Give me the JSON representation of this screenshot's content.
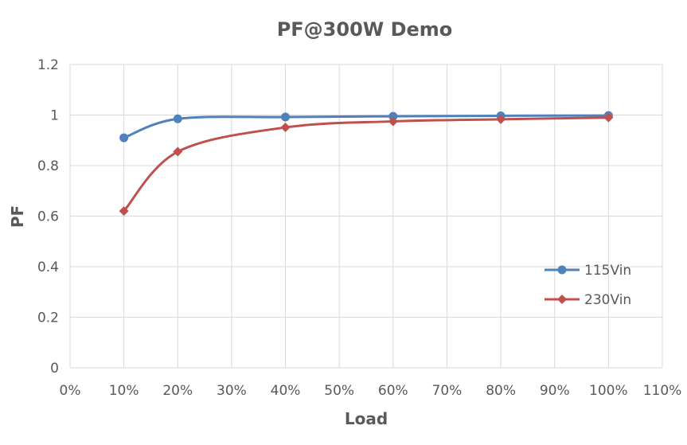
{
  "chart_data": {
    "type": "line",
    "title": "PF@300W Demo",
    "xlabel": "Load",
    "ylabel": "PF",
    "xlim": [
      0,
      110
    ],
    "ylim": [
      0,
      1.2
    ],
    "x_ticks": [
      0,
      10,
      20,
      30,
      40,
      50,
      60,
      70,
      80,
      90,
      100,
      110
    ],
    "x_tick_labels": [
      "0%",
      "10%",
      "20%",
      "30%",
      "40%",
      "50%",
      "60%",
      "70%",
      "80%",
      "90%",
      "100%",
      "110%"
    ],
    "y_ticks": [
      0,
      0.2,
      0.4,
      0.6,
      0.8,
      1,
      1.2
    ],
    "y_tick_labels": [
      "0",
      "0.2",
      "0.4",
      "0.6",
      "0.8",
      "1",
      "1.2"
    ],
    "grid": true,
    "legend_position": "right",
    "series": [
      {
        "name": "115Vin",
        "color": "#4f81bd",
        "marker": "circle",
        "x": [
          10,
          20,
          40,
          60,
          80,
          100
        ],
        "y": [
          0.91,
          0.985,
          0.992,
          0.995,
          0.997,
          0.998
        ]
      },
      {
        "name": "230Vin",
        "color": "#c0504d",
        "marker": "diamond",
        "x": [
          10,
          20,
          40,
          60,
          80,
          100
        ],
        "y": [
          0.62,
          0.855,
          0.951,
          0.975,
          0.983,
          0.99
        ]
      }
    ]
  }
}
